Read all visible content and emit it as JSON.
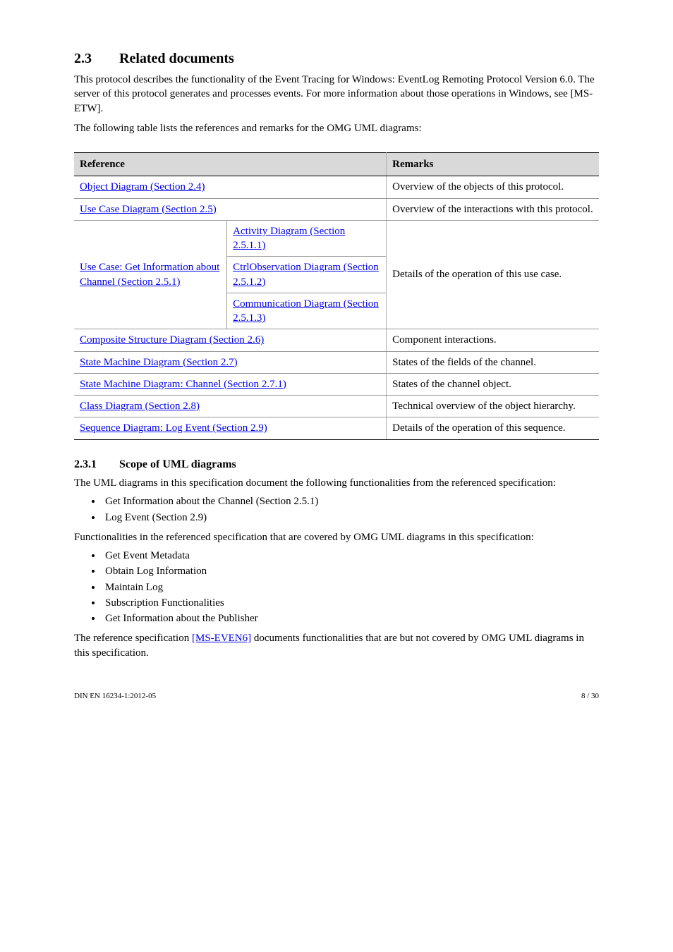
{
  "section": {
    "number": "2.3",
    "title": "Related documents",
    "intro": "This protocol describes the functionality of the Event Tracing for Windows: EventLog Remoting Protocol Version 6.0. The server of this protocol generates and processes events. For more information about those operations in Windows, see [MS-ETW].",
    "table_leadin": "The following table lists the references and remarks for the OMG UML diagrams:"
  },
  "table": {
    "columns": [
      "Reference",
      "Remarks"
    ],
    "col_widths": [
      "59.5%",
      "40.5%"
    ],
    "link_color": "#0000ee",
    "header_bg": "#d9d9d9",
    "border_color": "#999999",
    "outer_border_color": "#000000",
    "rows_simple": [
      {
        "ref_link": "Object Diagram (Section 2.4)",
        "remarks": "Overview of the objects of this protocol."
      },
      {
        "ref_link": "Use Case Diagram (Section 2.5)",
        "remarks": "Overview of the interactions with this protocol."
      }
    ],
    "merged_row": {
      "left": {
        "link": "Use Case: Get Information about Channel (Section 2.5.1)",
        "prefix": ""
      },
      "right_cells": [
        {
          "link": "Activity Diagram (Section 2.5.1.1)",
          "prefix": ""
        },
        {
          "link": "CtrlObservation Diagram (Section 2.5.1.2)",
          "prefix": ""
        },
        {
          "link": "Communication Diagram (Section 2.5.1.3)",
          "prefix": ""
        }
      ],
      "remarks": "Details of the operation of this use case."
    },
    "rows_simple2": [
      {
        "ref_link": "Composite Structure Diagram (Section 2.6)",
        "remarks": "Component interactions."
      },
      {
        "ref_link": "State Machine Diagram (Section 2.7)",
        "remarks": "States of the fields of the channel."
      },
      {
        "ref_link": "State Machine Diagram: Channel (Section 2.7.1)",
        "remarks": "States of the channel object."
      },
      {
        "ref_link": "Class Diagram (Section 2.8)",
        "remarks": "Technical overview of the object hierarchy."
      },
      {
        "ref_link": "Sequence Diagram: Log Event (Section 2.9)",
        "remarks": "Details of the operation of this sequence."
      }
    ]
  },
  "scope": {
    "number": "2.3.1",
    "title": "Scope of UML diagrams",
    "para1": "The UML diagrams in this specification document the following functionalities from the referenced specification:",
    "list1": [
      "Get Information about the Channel (Section 2.5.1)",
      "Log Event (Section 2.9)"
    ],
    "para2": "Functionalities in the referenced specification that are covered by OMG UML diagrams in this specification:",
    "list2": [
      "Get Event Metadata",
      "Obtain Log Information",
      "Maintain Log",
      "Subscription Functionalities",
      "Get Information about the Publisher"
    ],
    "para3_prefix": "The reference specification ",
    "para3_link": "[MS-EVEN6]",
    "para3_suffix": " documents functionalities that are but not covered by OMG UML diagrams in this specification."
  },
  "footer": {
    "left": "DIN EN 16234-1:2012-05",
    "right": "8 / 30"
  }
}
